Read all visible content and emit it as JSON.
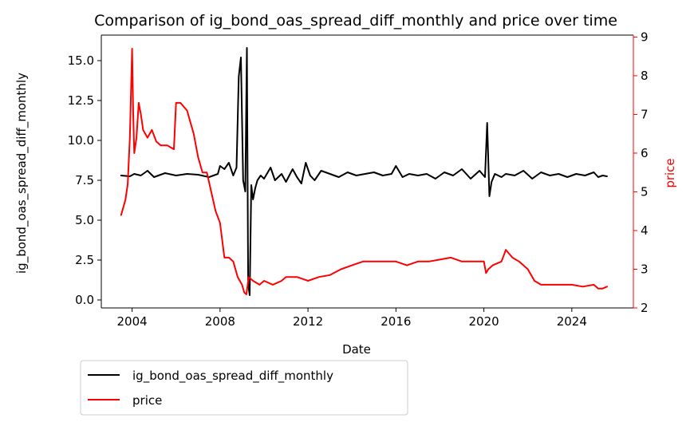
{
  "chart_data": {
    "type": "line",
    "title": "Comparison of ig_bond_oas_spread_diff_monthly and price over time",
    "xlabel": "Date",
    "ylabel_left": "ig_bond_oas_spread_diff_monthly",
    "ylabel_right": "price",
    "xlim": [
      2002.6,
      2026.8
    ],
    "ylim_left": [
      -0.5,
      16.6
    ],
    "ylim_right": [
      2.0,
      9.05
    ],
    "x_ticks": [
      2004,
      2008,
      2012,
      2016,
      2020,
      2024
    ],
    "x_tick_labels": [
      "2004",
      "2008",
      "2012",
      "2016",
      "2020",
      "2024"
    ],
    "y_left_ticks": [
      0.0,
      2.5,
      5.0,
      7.5,
      10.0,
      12.5,
      15.0
    ],
    "y_left_tick_labels": [
      "0.0",
      "2.5",
      "5.0",
      "7.5",
      "10.0",
      "12.5",
      "15.0"
    ],
    "y_right_ticks": [
      2,
      3,
      4,
      5,
      6,
      7,
      8,
      9
    ],
    "y_right_tick_labels": [
      "2",
      "3",
      "4",
      "5",
      "6",
      "7",
      "8",
      "9"
    ],
    "grid": false,
    "legend_position": "below-left",
    "series": [
      {
        "name": "ig_bond_oas_spread_diff_monthly",
        "axis": "left",
        "color": "#000000",
        "x": [
          2003.5,
          2003.9,
          2004.1,
          2004.4,
          2004.7,
          2005.0,
          2005.5,
          2006.0,
          2006.5,
          2007.0,
          2007.5,
          2007.9,
          2008.0,
          2008.2,
          2008.4,
          2008.6,
          2008.75,
          2008.85,
          2008.95,
          2009.05,
          2009.15,
          2009.22,
          2009.28,
          2009.35,
          2009.42,
          2009.5,
          2009.6,
          2009.7,
          2009.85,
          2010.0,
          2010.3,
          2010.5,
          2010.8,
          2011.0,
          2011.3,
          2011.5,
          2011.7,
          2011.9,
          2012.1,
          2012.3,
          2012.6,
          2013.0,
          2013.4,
          2013.8,
          2014.2,
          2014.6,
          2015.0,
          2015.4,
          2015.8,
          2016.0,
          2016.3,
          2016.6,
          2017.0,
          2017.4,
          2017.8,
          2018.2,
          2018.6,
          2019.0,
          2019.4,
          2019.8,
          2020.05,
          2020.15,
          2020.25,
          2020.35,
          2020.5,
          2020.8,
          2021.0,
          2021.4,
          2021.8,
          2022.2,
          2022.6,
          2023.0,
          2023.4,
          2023.8,
          2024.2,
          2024.6,
          2025.0,
          2025.2,
          2025.4,
          2025.6
        ],
        "y": [
          7.8,
          7.75,
          7.9,
          7.8,
          8.1,
          7.7,
          7.95,
          7.8,
          7.9,
          7.85,
          7.7,
          7.9,
          8.4,
          8.2,
          8.6,
          7.8,
          8.3,
          14.0,
          15.2,
          7.5,
          6.8,
          15.8,
          1.0,
          0.3,
          7.2,
          6.3,
          7.0,
          7.5,
          7.8,
          7.6,
          8.3,
          7.5,
          7.9,
          7.4,
          8.2,
          7.7,
          7.3,
          8.6,
          7.8,
          7.5,
          8.1,
          7.9,
          7.7,
          8.0,
          7.8,
          7.9,
          8.0,
          7.8,
          7.9,
          8.4,
          7.7,
          7.9,
          7.8,
          7.9,
          7.6,
          8.0,
          7.8,
          8.2,
          7.6,
          8.1,
          7.7,
          11.1,
          6.5,
          7.4,
          7.9,
          7.7,
          7.9,
          7.8,
          8.1,
          7.6,
          8.0,
          7.8,
          7.9,
          7.7,
          7.9,
          7.8,
          8.0,
          7.7,
          7.8,
          7.75
        ]
      },
      {
        "name": "price",
        "axis": "right",
        "color": "#ff0000",
        "x": [
          2003.5,
          2003.6,
          2003.7,
          2003.8,
          2003.9,
          2004.0,
          2004.05,
          2004.1,
          2004.2,
          2004.3,
          2004.4,
          2004.5,
          2004.7,
          2004.9,
          2005.1,
          2005.3,
          2005.6,
          2005.9,
          2006.0,
          2006.2,
          2006.5,
          2006.8,
          2007.0,
          2007.2,
          2007.4,
          2007.6,
          2007.8,
          2008.0,
          2008.2,
          2008.4,
          2008.6,
          2008.8,
          2009.0,
          2009.1,
          2009.2,
          2009.3,
          2009.5,
          2009.8,
          2010.0,
          2010.4,
          2010.8,
          2011.0,
          2011.5,
          2012.0,
          2012.5,
          2013.0,
          2013.5,
          2014.0,
          2014.5,
          2015.0,
          2015.5,
          2016.0,
          2016.5,
          2017.0,
          2017.5,
          2018.0,
          2018.5,
          2019.0,
          2019.5,
          2020.0,
          2020.1,
          2020.2,
          2020.4,
          2020.8,
          2021.0,
          2021.3,
          2021.6,
          2022.0,
          2022.3,
          2022.6,
          2023.0,
          2023.5,
          2024.0,
          2024.5,
          2025.0,
          2025.2,
          2025.4,
          2025.6
        ],
        "y": [
          4.4,
          4.6,
          4.8,
          5.2,
          6.4,
          8.7,
          7.0,
          6.0,
          6.4,
          7.3,
          7.0,
          6.6,
          6.4,
          6.6,
          6.3,
          6.2,
          6.2,
          6.1,
          7.3,
          7.3,
          7.1,
          6.5,
          5.9,
          5.5,
          5.5,
          5.0,
          4.5,
          4.2,
          3.3,
          3.3,
          3.2,
          2.8,
          2.6,
          2.4,
          2.35,
          2.8,
          2.7,
          2.6,
          2.7,
          2.6,
          2.7,
          2.8,
          2.8,
          2.7,
          2.8,
          2.85,
          3.0,
          3.1,
          3.2,
          3.2,
          3.2,
          3.2,
          3.1,
          3.2,
          3.2,
          3.25,
          3.3,
          3.2,
          3.2,
          3.2,
          2.9,
          3.0,
          3.1,
          3.2,
          3.5,
          3.3,
          3.2,
          3.0,
          2.7,
          2.6,
          2.6,
          2.6,
          2.6,
          2.55,
          2.6,
          2.5,
          2.5,
          2.55
        ]
      }
    ]
  }
}
